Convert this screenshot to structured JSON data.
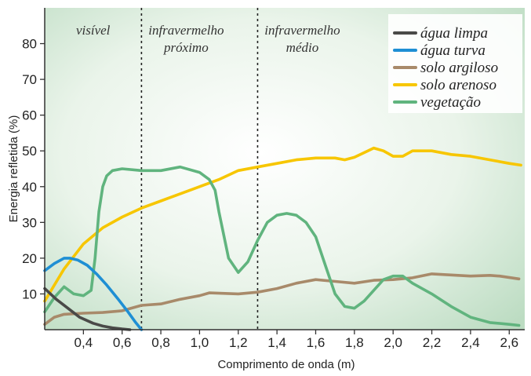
{
  "chart_data": {
    "type": "line",
    "title": "",
    "xlabel": "Comprimento de onda (m)",
    "ylabel": "Energia refletida (%)",
    "xlim": [
      0.2,
      2.68
    ],
    "ylim": [
      0,
      90
    ],
    "x_ticks": [
      "0,4",
      "0,6",
      "0,8",
      "1,0",
      "1,2",
      "1,4",
      "1,6",
      "1,8",
      "2,0",
      "2,2",
      "2,4",
      "2,6"
    ],
    "y_ticks": [
      "10",
      "20",
      "30",
      "40",
      "50",
      "60",
      "70",
      "80"
    ],
    "grid": false,
    "legend_position": "top-right",
    "regions": [
      {
        "label_lines": [
          "visível"
        ]
      },
      {
        "label_lines": [
          "infravermelho",
          "próximo"
        ]
      },
      {
        "label_lines": [
          "infravermelho",
          "médio"
        ]
      }
    ],
    "boundaries": [
      0.7,
      1.3
    ],
    "series": [
      {
        "name": "água limpa",
        "color": "#4a4a48",
        "x": [
          0.2,
          0.26,
          0.32,
          0.38,
          0.45,
          0.5,
          0.55,
          0.6,
          0.64
        ],
        "y": [
          11.5,
          8.5,
          6,
          3.5,
          1.8,
          1,
          0.5,
          0.2,
          0
        ]
      },
      {
        "name": "água turva",
        "color": "#1f8fd4",
        "x": [
          0.2,
          0.25,
          0.3,
          0.33,
          0.37,
          0.42,
          0.47,
          0.52,
          0.58,
          0.63,
          0.67,
          0.7
        ],
        "y": [
          16.5,
          18.5,
          20,
          20,
          19.5,
          18,
          15.5,
          12.5,
          8.5,
          5,
          2,
          0
        ]
      },
      {
        "name": "solo argiloso",
        "color": "#a88a6a",
        "x": [
          0.2,
          0.25,
          0.3,
          0.4,
          0.5,
          0.6,
          0.7,
          0.8,
          0.9,
          1.0,
          1.05,
          1.2,
          1.3,
          1.4,
          1.5,
          1.6,
          1.7,
          1.8,
          1.9,
          2.0,
          2.1,
          2.2,
          2.3,
          2.4,
          2.5,
          2.55,
          2.65
        ],
        "y": [
          1.5,
          3.5,
          4.3,
          4.6,
          4.8,
          5.3,
          6.8,
          7.2,
          8.5,
          9.5,
          10.3,
          10,
          10.5,
          11.5,
          13,
          14,
          13.5,
          13,
          13.8,
          14,
          14.5,
          15.6,
          15.3,
          15,
          15.2,
          15,
          14.2
        ]
      },
      {
        "name": "solo arenoso",
        "color": "#f7c600",
        "x": [
          0.2,
          0.3,
          0.4,
          0.5,
          0.6,
          0.7,
          0.8,
          0.9,
          1.0,
          1.1,
          1.2,
          1.3,
          1.4,
          1.5,
          1.6,
          1.7,
          1.75,
          1.8,
          1.85,
          1.9,
          1.95,
          2.0,
          2.05,
          2.1,
          2.2,
          2.3,
          2.4,
          2.5,
          2.6,
          2.66
        ],
        "y": [
          8,
          17,
          24,
          28.5,
          31.5,
          34,
          36,
          38,
          40,
          42,
          44.5,
          45.5,
          46.5,
          47.5,
          48,
          48,
          47.5,
          48.2,
          49.5,
          50.8,
          50,
          48.5,
          48.5,
          50,
          50,
          49,
          48.5,
          47.5,
          46.5,
          46
        ]
      },
      {
        "name": "vegetação",
        "color": "#60b47e",
        "x": [
          0.2,
          0.25,
          0.3,
          0.35,
          0.4,
          0.44,
          0.46,
          0.48,
          0.5,
          0.52,
          0.55,
          0.6,
          0.7,
          0.8,
          0.9,
          1.0,
          1.05,
          1.08,
          1.1,
          1.15,
          1.2,
          1.25,
          1.3,
          1.35,
          1.4,
          1.45,
          1.5,
          1.55,
          1.6,
          1.65,
          1.7,
          1.75,
          1.8,
          1.85,
          1.9,
          1.95,
          2.0,
          2.05,
          2.1,
          2.2,
          2.3,
          2.4,
          2.5,
          2.6,
          2.65
        ],
        "y": [
          5,
          9,
          12,
          10,
          9.5,
          11,
          20,
          33,
          40,
          43,
          44.5,
          45,
          44.5,
          44.5,
          45.5,
          44,
          42,
          39,
          33,
          20,
          16,
          19,
          25,
          30,
          32,
          32.5,
          32,
          30,
          26,
          18,
          10,
          6.5,
          6,
          8,
          11,
          14,
          15,
          15,
          13,
          10,
          6.5,
          3.5,
          2,
          1.5,
          1.2
        ]
      }
    ]
  }
}
